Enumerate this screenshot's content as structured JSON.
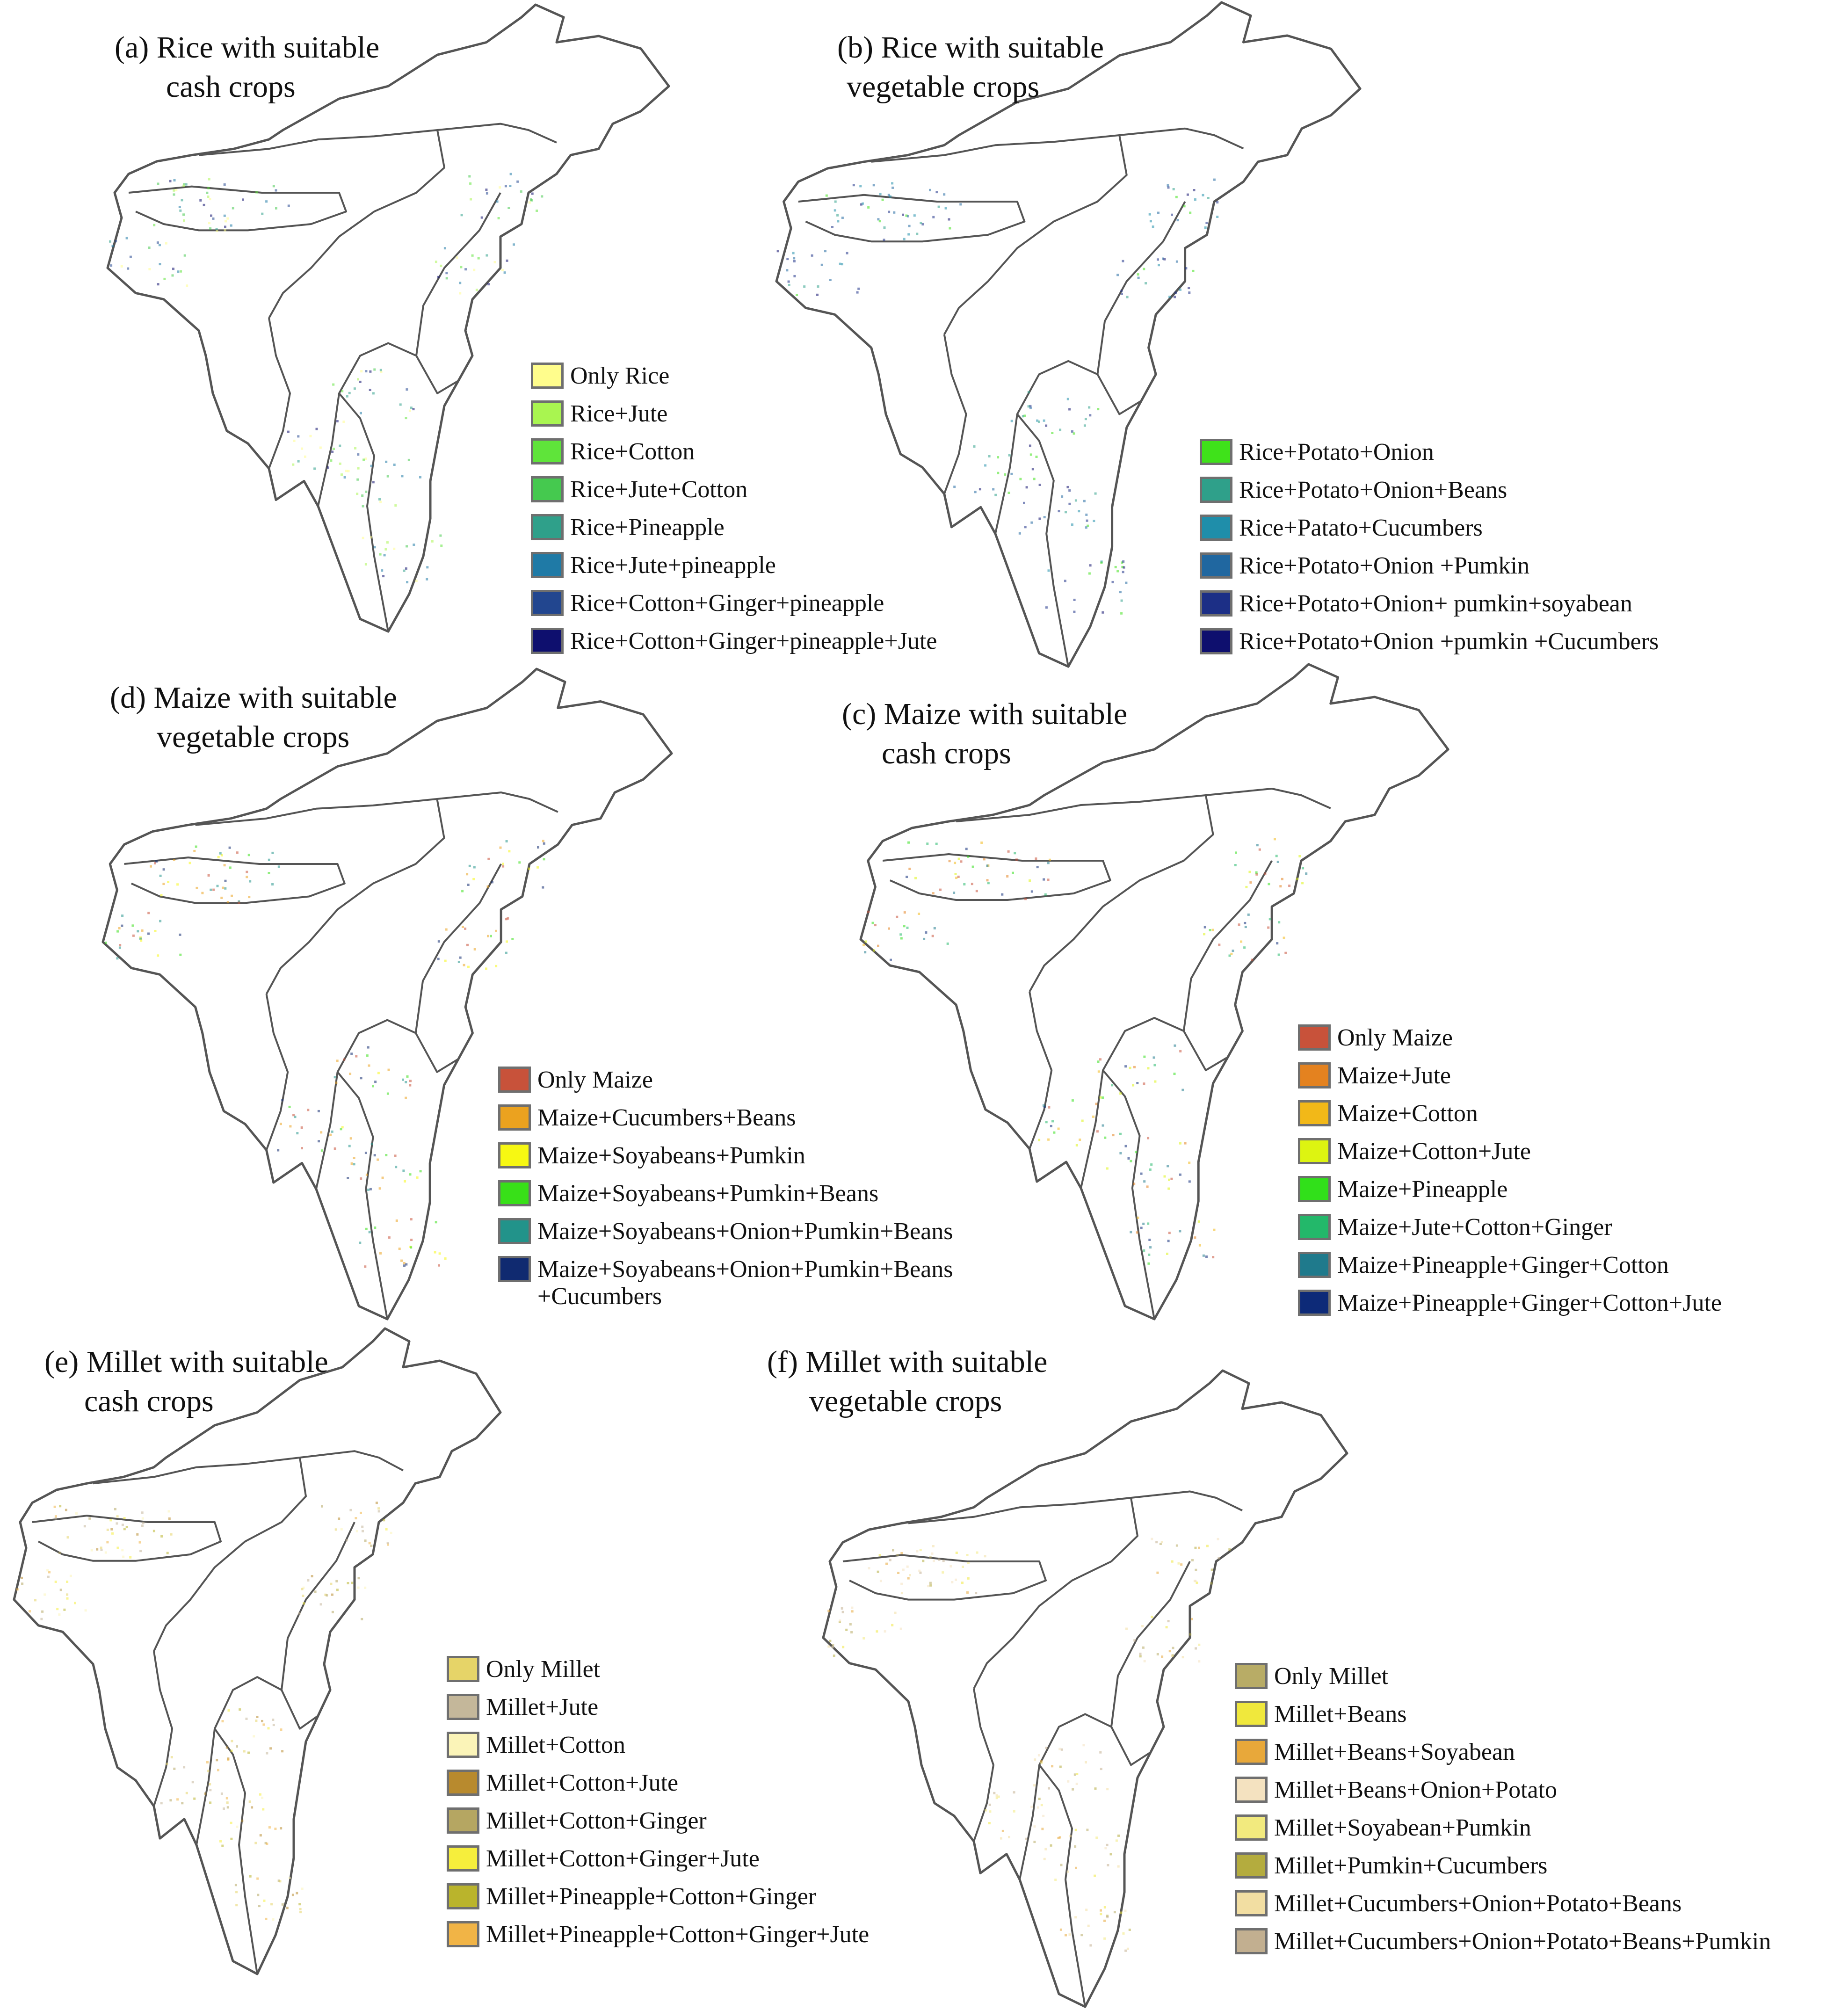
{
  "panels": [
    {
      "id": "a",
      "title_line1": "(a)  Rice with suitable",
      "title_line2": "cash crops",
      "legend": [
        {
          "label": "Only Rice",
          "color": "#fffd8c"
        },
        {
          "label": "Rice+Jute",
          "color": "#a9f550"
        },
        {
          "label": "Rice+Cotton",
          "color": "#5fe43a"
        },
        {
          "label": "Rice+Jute+Cotton",
          "color": "#45c94f"
        },
        {
          "label": "Rice+Pineapple",
          "color": "#2fa08a"
        },
        {
          "label": "Rice+Jute+pineapple",
          "color": "#1f7aa6"
        },
        {
          "label": "Rice+Cotton+Ginger+pineapple",
          "color": "#22468f"
        },
        {
          "label": "Rice+Cotton+Ginger+pineapple+Jute",
          "color": "#0e0f6e"
        }
      ]
    },
    {
      "id": "b",
      "title_line1": "(b) Rice with suitable",
      "title_line2": "vegetable crops",
      "legend": [
        {
          "label": "Rice+Potato+Onion",
          "color": "#3fe21a"
        },
        {
          "label": "Rice+Potato+Onion+Beans",
          "color": "#2fa08a"
        },
        {
          "label": "Rice+Patato+Cucumbers",
          "color": "#1f8eaa"
        },
        {
          "label": "Rice+Potato+Onion +Pumkin",
          "color": "#2067a0"
        },
        {
          "label": "Rice+Potato+Onion+ pumkin+soyabean",
          "color": "#1c2f86"
        },
        {
          "label": "Rice+Potato+Onion +pumkin +Cucumbers",
          "color": "#0e0f6e"
        }
      ]
    },
    {
      "id": "d",
      "title_line1": "(d) Maize with suitable",
      "title_line2": "vegetable crops",
      "legend": [
        {
          "label": "Only Maize",
          "color": "#c8523a"
        },
        {
          "label": "Maize+Cucumbers+Beans",
          "color": "#eba21f"
        },
        {
          "label": "Maize+Soyabeans+Pumkin",
          "color": "#f7f812"
        },
        {
          "label": "Maize+Soyabeans+Pumkin+Beans",
          "color": "#38e018"
        },
        {
          "label": "Maize+Soyabeans+Onion+Pumkin+Beans",
          "color": "#22938a"
        },
        {
          "label": "Maize+Soyabeans+Onion+Pumkin+Beans",
          "label2": "+Cucumbers",
          "color": "#102a70"
        }
      ]
    },
    {
      "id": "c",
      "title_line1": "(c) Maize with suitable",
      "title_line2": "cash crops",
      "legend": [
        {
          "label": "Only Maize",
          "color": "#c8523a"
        },
        {
          "label": "Maize+Jute",
          "color": "#e4821f"
        },
        {
          "label": "Maize+Cotton",
          "color": "#f2b818"
        },
        {
          "label": "Maize+Cotton+Jute",
          "color": "#ddf411"
        },
        {
          "label": "Maize+Pineapple",
          "color": "#31e01a"
        },
        {
          "label": "Maize+Jute+Cotton+Ginger",
          "color": "#23b86a"
        },
        {
          "label": "Maize+Pineapple+Ginger+Cotton",
          "color": "#1f7a8c"
        },
        {
          "label": "Maize+Pineapple+Ginger+Cotton+Jute",
          "color": "#0d2a78"
        }
      ]
    },
    {
      "id": "e",
      "title_line1": "(e) Millet with suitable",
      "title_line2": "cash crops",
      "legend": [
        {
          "label": "Only Millet",
          "color": "#e6d468"
        },
        {
          "label": "Millet+Jute",
          "color": "#c4b79a"
        },
        {
          "label": "Millet+Cotton",
          "color": "#fbf4b8"
        },
        {
          "label": "Millet+Cotton+Jute",
          "color": "#b88a2e"
        },
        {
          "label": "Millet+Cotton+Ginger",
          "color": "#b5a662"
        },
        {
          "label": "Millet+Cotton+Ginger+Jute",
          "color": "#f6ee3c"
        },
        {
          "label": "Millet+Pineapple+Cotton+Ginger",
          "color": "#bab42c"
        },
        {
          "label": "Millet+Pineapple+Cotton+Ginger+Jute",
          "color": "#f1b446"
        }
      ]
    },
    {
      "id": "f",
      "title_line1": "(f) Millet with suitable",
      "title_line2": "vegetable crops",
      "legend": [
        {
          "label": "Only Millet",
          "color": "#b8ac66"
        },
        {
          "label": "Millet+Beans",
          "color": "#f0e83c"
        },
        {
          "label": "Millet+Beans+Soyabean",
          "color": "#e8a83a"
        },
        {
          "label": "Millet+Beans+Onion+Potato",
          "color": "#f4e2c0"
        },
        {
          "label": "Millet+Soyabean+Pumkin",
          "color": "#f2ea7e"
        },
        {
          "label": "Millet+Pumkin+Cucumbers",
          "color": "#b4ac3e"
        },
        {
          "label": "Millet+Cucumbers+Onion+Potato+Beans",
          "color": "#f2dea2"
        },
        {
          "label": "Millet+Cucumbers+Onion+Potato+Beans+Pumkin",
          "color": "#c2af90"
        }
      ]
    }
  ]
}
